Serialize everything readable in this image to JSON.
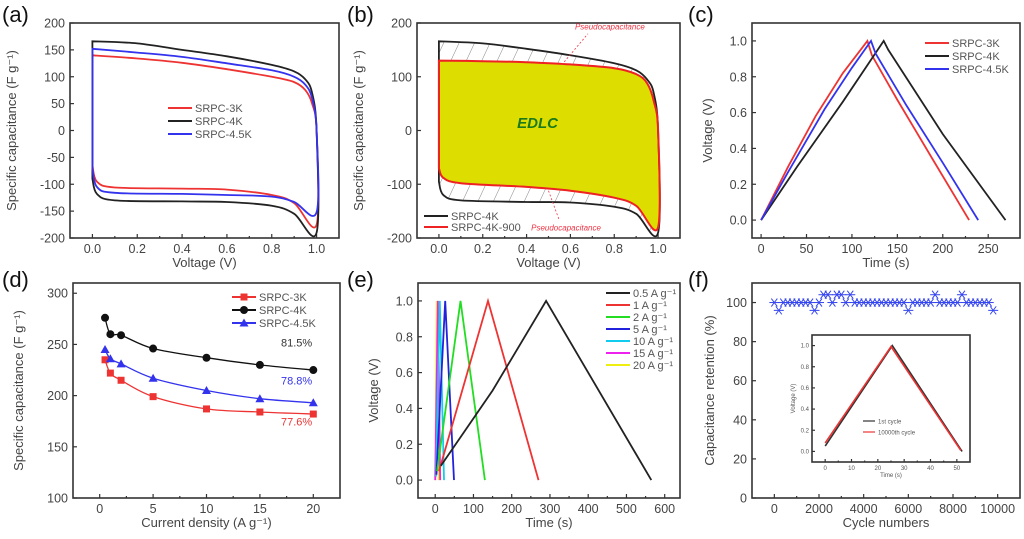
{
  "chart_data": [
    {
      "id": "a",
      "type": "line",
      "panel_label": "(a)",
      "title": "",
      "xlabel": "Voltage (V)",
      "ylabel": "Specific capacitance (F g⁻¹)",
      "xlim": [
        -0.1,
        1.1
      ],
      "ylim": [
        -200,
        200
      ],
      "xticks": [
        0.0,
        0.2,
        0.4,
        0.6,
        0.8,
        1.0
      ],
      "xtick_labels": [
        "0.0",
        "0.2",
        "0.4",
        "0.6",
        "0.8",
        "1.0"
      ],
      "yticks": [
        200,
        150,
        100,
        50,
        0,
        -50,
        -100,
        -150,
        -200
      ],
      "ytick_labels": [
        "200",
        "150",
        "100",
        "50",
        "0",
        "-50",
        "-100",
        "-150",
        "-200"
      ],
      "legend": "center",
      "series": [
        {
          "name": "SRPC-3K",
          "color": "#ee3333",
          "upper": [
            [
              0.0,
              140
            ],
            [
              0.2,
              134
            ],
            [
              0.4,
              126
            ],
            [
              0.6,
              114
            ],
            [
              0.8,
              100
            ],
            [
              0.9,
              90
            ],
            [
              0.95,
              75
            ],
            [
              0.98,
              50
            ],
            [
              1.0,
              0
            ]
          ],
          "lower": [
            [
              0.0,
              -65
            ],
            [
              0.02,
              -95
            ],
            [
              0.1,
              -106
            ],
            [
              0.4,
              -108
            ],
            [
              0.6,
              -110
            ],
            [
              0.8,
              -120
            ],
            [
              0.9,
              -135
            ],
            [
              1.0,
              -175
            ]
          ]
        },
        {
          "name": "SRPC-4K",
          "color": "#222222",
          "upper": [
            [
              0.0,
              166
            ],
            [
              0.2,
              162
            ],
            [
              0.4,
              150
            ],
            [
              0.6,
              138
            ],
            [
              0.8,
              122
            ],
            [
              0.9,
              110
            ],
            [
              0.95,
              95
            ],
            [
              0.98,
              70
            ],
            [
              1.0,
              0
            ]
          ],
          "lower": [
            [
              0.0,
              -90
            ],
            [
              0.02,
              -118
            ],
            [
              0.1,
              -130
            ],
            [
              0.4,
              -132
            ],
            [
              0.6,
              -133
            ],
            [
              0.8,
              -140
            ],
            [
              0.9,
              -155
            ],
            [
              1.0,
              -190
            ]
          ]
        },
        {
          "name": "SRPC-4.5K",
          "color": "#3333ee",
          "upper": [
            [
              0.0,
              152
            ],
            [
              0.2,
              145
            ],
            [
              0.4,
              137
            ],
            [
              0.6,
              125
            ],
            [
              0.8,
              112
            ],
            [
              0.9,
              100
            ],
            [
              0.95,
              85
            ],
            [
              0.98,
              60
            ],
            [
              1.0,
              0
            ]
          ],
          "lower": [
            [
              0.0,
              -70
            ],
            [
              0.02,
              -105
            ],
            [
              0.1,
              -116
            ],
            [
              0.4,
              -118
            ],
            [
              0.6,
              -120
            ],
            [
              0.8,
              -123
            ],
            [
              0.9,
              -133
            ],
            [
              1.0,
              -152
            ]
          ]
        }
      ]
    },
    {
      "id": "b",
      "type": "area",
      "panel_label": "(b)",
      "xlabel": "Voltage (V)",
      "ylabel": "Specific capacitance (F g⁻¹)",
      "xlim": [
        -0.1,
        1.1
      ],
      "ylim": [
        -200,
        200
      ],
      "xticks": [
        0.0,
        0.2,
        0.4,
        0.6,
        0.8,
        1.0
      ],
      "xtick_labels": [
        "0.0",
        "0.2",
        "0.4",
        "0.6",
        "0.8",
        "1.0"
      ],
      "yticks": [
        200,
        100,
        0,
        -100,
        -200
      ],
      "ytick_labels": [
        "200",
        "100",
        "0",
        "-100",
        "-200"
      ],
      "legend": "bottom-left",
      "fill_color": "#dddd00",
      "annotations": [
        {
          "text": "EDLC",
          "x": 0.45,
          "y": 5,
          "color": "#1a7a1a"
        },
        {
          "text": "Pseudocapacitance",
          "x": 0.78,
          "y": 188,
          "color": "#ee3344"
        },
        {
          "text": "Pseudocapacitance",
          "x": 0.58,
          "y": -186,
          "color": "#ee3344"
        }
      ],
      "series": [
        {
          "name": "SRPC-4K",
          "color": "#222222",
          "upper": [
            [
              0.0,
              166
            ],
            [
              0.2,
              162
            ],
            [
              0.4,
              152
            ],
            [
              0.6,
              140
            ],
            [
              0.8,
              125
            ],
            [
              0.9,
              112
            ],
            [
              0.95,
              95
            ],
            [
              0.98,
              70
            ],
            [
              1.0,
              0
            ]
          ],
          "lower": [
            [
              0.0,
              -95
            ],
            [
              0.02,
              -120
            ],
            [
              0.1,
              -130
            ],
            [
              0.4,
              -133
            ],
            [
              0.6,
              -134
            ],
            [
              0.8,
              -142
            ],
            [
              0.9,
              -155
            ],
            [
              1.0,
              -190
            ]
          ]
        },
        {
          "name": "SRPC-4K-900",
          "color": "#ee2222",
          "upper": [
            [
              0.0,
              130
            ],
            [
              0.2,
              129
            ],
            [
              0.4,
              127
            ],
            [
              0.6,
              123
            ],
            [
              0.8,
              116
            ],
            [
              0.9,
              105
            ],
            [
              0.95,
              88
            ],
            [
              0.98,
              55
            ],
            [
              1.0,
              0
            ]
          ],
          "lower": [
            [
              0.0,
              -70
            ],
            [
              0.02,
              -88
            ],
            [
              0.1,
              -98
            ],
            [
              0.4,
              -105
            ],
            [
              0.6,
              -112
            ],
            [
              0.8,
              -125
            ],
            [
              0.9,
              -140
            ],
            [
              1.0,
              -180
            ]
          ]
        }
      ]
    },
    {
      "id": "c",
      "type": "line",
      "panel_label": "(c)",
      "xlabel": "Time (s)",
      "ylabel": "Voltage (V)",
      "xlim": [
        -10,
        285
      ],
      "ylim": [
        -0.1,
        1.1
      ],
      "xticks": [
        0,
        50,
        100,
        150,
        200,
        250
      ],
      "xtick_labels": [
        "0",
        "50",
        "100",
        "150",
        "200",
        "250"
      ],
      "yticks": [
        0.0,
        0.2,
        0.4,
        0.6,
        0.8,
        1.0
      ],
      "ytick_labels": [
        "0.0",
        "0.2",
        "0.4",
        "0.6",
        "0.8",
        "1.0"
      ],
      "legend": "top-right",
      "series": [
        {
          "name": "SRPC-3K",
          "color": "#ee3333",
          "points": [
            [
              0,
              0
            ],
            [
              30,
              0.3
            ],
            [
              60,
              0.58
            ],
            [
              90,
              0.82
            ],
            [
              117,
              1.0
            ],
            [
              122,
              0.92
            ],
            [
              150,
              0.67
            ],
            [
              190,
              0.33
            ],
            [
              229,
              0
            ]
          ]
        },
        {
          "name": "SRPC-4K",
          "color": "#222222",
          "points": [
            [
              0,
              0
            ],
            [
              40,
              0.3
            ],
            [
              90,
              0.66
            ],
            [
              135,
              1.0
            ],
            [
              140,
              0.95
            ],
            [
              200,
              0.48
            ],
            [
              269,
              0
            ]
          ]
        },
        {
          "name": "SRPC-4.5K",
          "color": "#3333ee",
          "points": [
            [
              0,
              0
            ],
            [
              30,
              0.27
            ],
            [
              70,
              0.62
            ],
            [
              100,
              0.85
            ],
            [
              121,
              1.0
            ],
            [
              126,
              0.93
            ],
            [
              160,
              0.64
            ],
            [
              200,
              0.32
            ],
            [
              239,
              0
            ]
          ]
        }
      ]
    },
    {
      "id": "d",
      "type": "line",
      "panel_label": "(d)",
      "xlabel": "Current density (A g⁻¹)",
      "ylabel": "Specific capacitance (F g⁻¹)",
      "xlim": [
        -2.5,
        22.5
      ],
      "ylim": [
        100,
        310
      ],
      "xticks": [
        0,
        5,
        10,
        15,
        20
      ],
      "xtick_labels": [
        "0",
        "5",
        "10",
        "15",
        "20"
      ],
      "yticks": [
        100,
        150,
        200,
        250,
        300
      ],
      "ytick_labels": [
        "100",
        "150",
        "200",
        "250",
        "300"
      ],
      "legend": "top-right",
      "x": [
        0.5,
        1,
        2,
        5,
        10,
        15,
        20
      ],
      "series": [
        {
          "name": "SRPC-3K",
          "color": "#ee3333",
          "marker": "square",
          "values": [
            235,
            222,
            215,
            199,
            187,
            184,
            182
          ],
          "retention_label": "77.6%"
        },
        {
          "name": "SRPC-4K",
          "color": "#111111",
          "marker": "circle",
          "values": [
            276,
            260,
            259,
            246,
            237,
            230,
            225
          ],
          "retention_label": "81.5%"
        },
        {
          "name": "SRPC-4.5K",
          "color": "#3333ee",
          "marker": "triangle",
          "values": [
            245,
            236,
            231,
            217,
            205,
            197,
            193
          ],
          "retention_label": "78.8%"
        }
      ]
    },
    {
      "id": "e",
      "type": "line",
      "panel_label": "(e)",
      "xlabel": "Time (s)",
      "ylabel": "Voltage (V)",
      "xlim": [
        -45,
        640
      ],
      "ylim": [
        -0.1,
        1.1
      ],
      "xticks": [
        0,
        100,
        200,
        300,
        400,
        500,
        600
      ],
      "xtick_labels": [
        "0",
        "100",
        "200",
        "300",
        "400",
        "500",
        "600"
      ],
      "yticks": [
        0.0,
        0.2,
        0.4,
        0.6,
        0.8,
        1.0
      ],
      "ytick_labels": [
        "0.0",
        "0.2",
        "0.4",
        "0.6",
        "0.8",
        "1.0"
      ],
      "legend": "top-right",
      "series": [
        {
          "name": "0.5 A g⁻¹",
          "color": "#222222",
          "points": [
            [
              15,
              0.08
            ],
            [
              150,
              0.5
            ],
            [
              290,
              1.0
            ],
            [
              565,
              0
            ]
          ]
        },
        {
          "name": "1 A g⁻¹",
          "color": "#ee3333",
          "points": [
            [
              10,
              0.05
            ],
            [
              138,
              1.0
            ],
            [
              270,
              0
            ]
          ]
        },
        {
          "name": "2 A g⁻¹",
          "color": "#22dd22",
          "points": [
            [
              5,
              0.05
            ],
            [
              66,
              1.0
            ],
            [
              130,
              0
            ]
          ]
        },
        {
          "name": "5 A g⁻¹",
          "color": "#2222dd",
          "points": [
            [
              3,
              0.03
            ],
            [
              26,
              1.0
            ],
            [
              49,
              0
            ]
          ]
        },
        {
          "name": "10 A g⁻¹",
          "color": "#11ccee",
          "points": [
            [
              2,
              0.02
            ],
            [
              12,
              1.0
            ],
            [
              23,
              0
            ]
          ]
        },
        {
          "name": "15 A g⁻¹",
          "color": "#ee22ee",
          "points": [
            [
              0,
              0
            ],
            [
              1,
              0.15
            ],
            [
              7,
              1.0
            ],
            [
              13,
              0
            ]
          ]
        },
        {
          "name": "20 A g⁻¹",
          "color": "#eeee11",
          "points": [
            [
              0,
              0
            ],
            [
              1,
              0.2
            ],
            [
              4,
              1.0
            ],
            [
              9,
              0
            ]
          ]
        }
      ]
    },
    {
      "id": "f",
      "type": "scatter",
      "panel_label": "(f)",
      "xlabel": "Cycle numbers",
      "ylabel": "Capacitance retention (%)",
      "xlim": [
        -1000,
        11000
      ],
      "ylim": [
        0,
        110
      ],
      "xticks": [
        0,
        2000,
        4000,
        6000,
        8000,
        10000
      ],
      "xtick_labels": [
        "0",
        "2000",
        "4000",
        "6000",
        "8000",
        "10000"
      ],
      "yticks": [
        0,
        20,
        40,
        60,
        80,
        100
      ],
      "ytick_labels": [
        "0",
        "20",
        "40",
        "60",
        "80",
        "100"
      ],
      "series": [
        {
          "name": "Capacitance retention",
          "color": "#3344ee",
          "marker": "asterisk",
          "x_start": 0,
          "x_step": 200,
          "values": [
            100,
            96,
            100,
            100,
            100,
            100,
            100,
            100,
            100,
            96,
            100,
            104,
            104,
            100,
            104,
            104,
            100,
            104,
            100,
            100,
            100,
            100,
            100,
            100,
            100,
            100,
            100,
            100,
            100,
            100,
            96,
            100,
            100,
            100,
            100,
            100,
            104,
            100,
            100,
            100,
            100,
            100,
            104,
            100,
            100,
            100,
            100,
            100,
            100,
            96
          ]
        }
      ],
      "inset": {
        "type": "line",
        "xlabel": "Time (s)",
        "ylabel": "Voltage (V)",
        "xlim": [
          -5,
          55
        ],
        "ylim": [
          -0.1,
          1.1
        ],
        "xticks": [
          0,
          10,
          20,
          30,
          40,
          50
        ],
        "xtick_labels": [
          "0",
          "10",
          "20",
          "30",
          "40",
          "50"
        ],
        "yticks": [
          0.0,
          0.2,
          0.4,
          0.6,
          0.8,
          1.0
        ],
        "ytick_labels": [
          "0.0",
          "0.2",
          "0.4",
          "0.6",
          "0.8",
          "1.0"
        ],
        "legend": "center-right",
        "series": [
          {
            "name": "1st cycle",
            "color": "#333333",
            "points": [
              [
                0,
                0.05
              ],
              [
                25.5,
                1.0
              ],
              [
                52,
                0.0
              ]
            ]
          },
          {
            "name": "10000th cycle",
            "color": "#ee3333",
            "points": [
              [
                0,
                0.08
              ],
              [
                25,
                0.99
              ],
              [
                51.5,
                0.01
              ]
            ]
          }
        ]
      }
    }
  ]
}
